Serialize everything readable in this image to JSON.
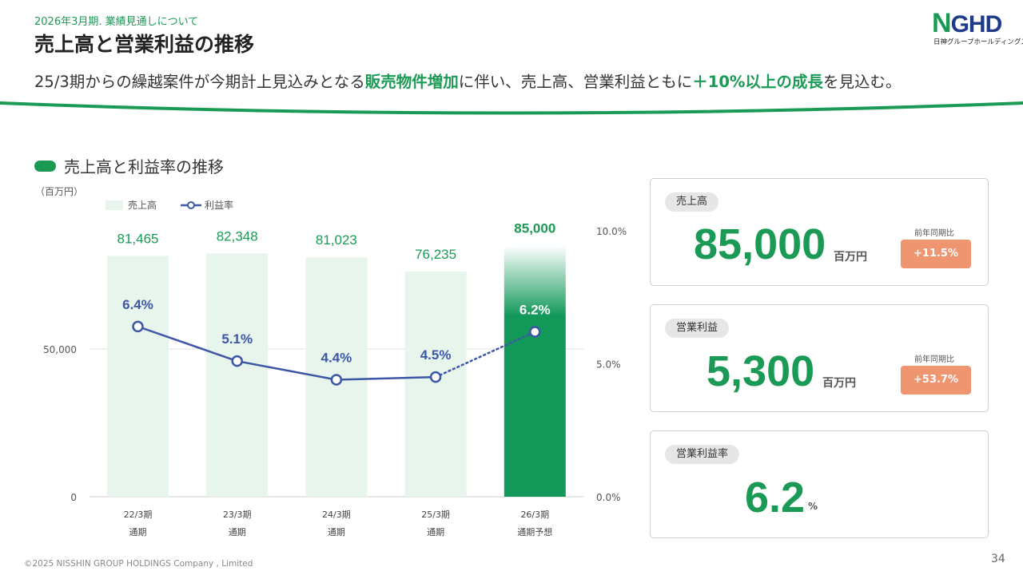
{
  "header": {
    "subtitle": "2026年3月期. 業績見通しについて",
    "title": "売上高と営業利益の推移",
    "lead_parts": [
      "25/3期からの繰越案件が今期計上見込みとなる",
      "販売物件増加",
      "に伴い、売上高、営業利益ともに",
      "＋10%以上の成長",
      "を見込む。"
    ]
  },
  "logo": {
    "n": "N",
    "ghd": "GHD",
    "sub": "日神グループホールディングス"
  },
  "section": {
    "title": "売上高と利益率の推移"
  },
  "chart_data": {
    "type": "bar",
    "unit_label": "（百万円）",
    "legend": {
      "bar": "売上高",
      "line": "利益率"
    },
    "categories": [
      {
        "line1": "22/3期",
        "line2": "通期"
      },
      {
        "line1": "23/3期",
        "line2": "通期"
      },
      {
        "line1": "24/3期",
        "line2": "通期"
      },
      {
        "line1": "25/3期",
        "line2": "通期"
      },
      {
        "line1": "26/3期",
        "line2": "通期予想"
      }
    ],
    "series": [
      {
        "name": "売上高",
        "axis": "left",
        "values": [
          81465,
          82348,
          81023,
          76235,
          85000
        ],
        "labels": [
          "81,465",
          "82,348",
          "81,023",
          "76,235",
          "85,000"
        ]
      },
      {
        "name": "利益率",
        "axis": "right",
        "values": [
          6.4,
          5.1,
          4.4,
          4.5,
          6.2
        ],
        "labels": [
          "6.4%",
          "5.1%",
          "4.4%",
          "4.5%",
          "6.2%"
        ]
      }
    ],
    "left_axis": {
      "ticks": [
        0,
        50000
      ],
      "tick_labels": [
        "0",
        "50,000"
      ],
      "range": [
        0,
        100000
      ]
    },
    "right_axis": {
      "ticks": [
        0,
        5,
        10
      ],
      "tick_labels": [
        "0.0%",
        "5.0%",
        "10.0%"
      ],
      "range": [
        0,
        10
      ]
    },
    "forecast_index": 4,
    "colors": {
      "bar": "#e8f5ec",
      "bar_forecast": "#12995a",
      "line": "#3d56a6",
      "bar_label": "#1a9a54"
    }
  },
  "cards": {
    "sales": {
      "tag": "売上高",
      "value": "85,000",
      "unit": "百万円",
      "cmp_label": "前年同期比",
      "badge": "+11.5%"
    },
    "op_profit": {
      "tag": "営業利益",
      "value": "5,300",
      "unit": "百万円",
      "cmp_label": "前年同期比",
      "badge": "+53.7%"
    },
    "op_margin": {
      "tag": "営業利益率",
      "value": "6.2",
      "unit": "%"
    }
  },
  "footer": {
    "copyright": "©2025 NISSHIN GROUP HOLDINGS Company , Limited",
    "page": "34"
  }
}
